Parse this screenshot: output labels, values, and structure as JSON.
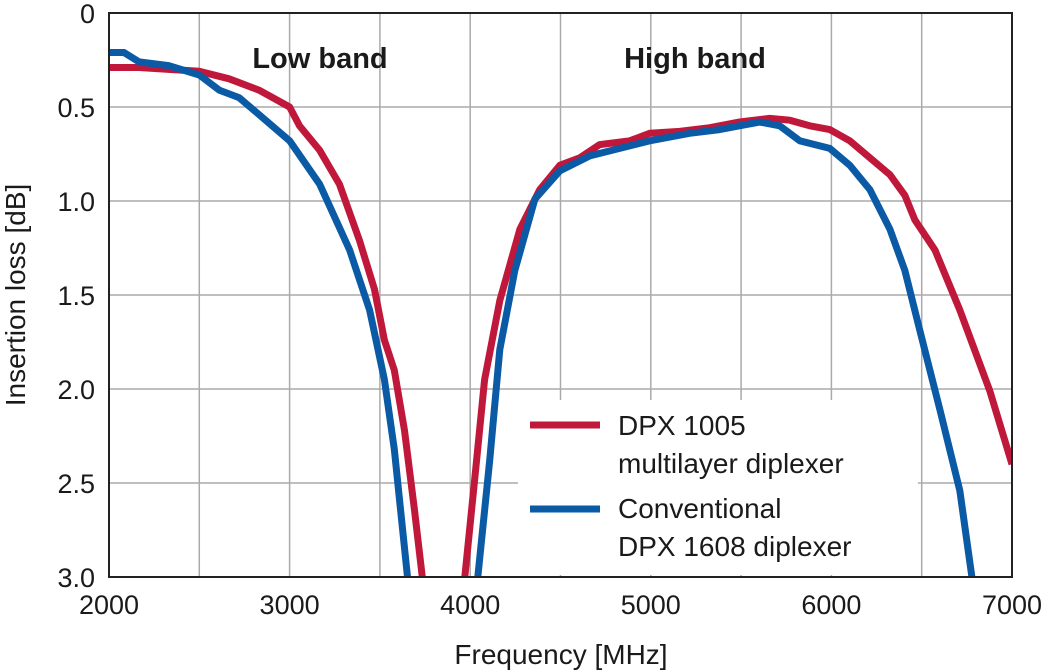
{
  "chart_data": {
    "type": "line",
    "title": "",
    "xlabel": "Frequency [MHz]",
    "ylabel": "Insertion loss [dB]",
    "xlim": [
      2000,
      7000
    ],
    "ylim": [
      0,
      3.0
    ],
    "y_inverted": true,
    "grid": true,
    "x_ticks": [
      2000,
      3000,
      4000,
      5000,
      6000,
      7000
    ],
    "x_tick_labels": [
      "2000",
      "3000",
      "4000",
      "5000",
      "6000",
      "7000"
    ],
    "y_ticks": [
      0,
      0.5,
      1.0,
      1.5,
      2.0,
      2.5,
      3.0
    ],
    "y_tick_labels": [
      "0",
      "0.5",
      "1.0",
      "1.5",
      "2.0",
      "2.5",
      "3.0"
    ],
    "annotations": [
      "Low band",
      "High band"
    ],
    "legend_placement": "bottom-right",
    "series": [
      {
        "name": "DPX 1005 multilayer diplexer",
        "legend_lines": [
          "DPX 1005",
          "multilayer diplexer"
        ],
        "color": "#c0183a",
        "segments": [
          [
            [
              2000,
              0.29
            ],
            [
              2166,
              0.29
            ],
            [
              2330,
              0.3
            ],
            [
              2500,
              0.31
            ],
            [
              2665,
              0.35
            ],
            [
              2830,
              0.41
            ],
            [
              3000,
              0.5
            ],
            [
              3055,
              0.6
            ],
            [
              3166,
              0.73
            ],
            [
              3276,
              0.91
            ],
            [
              3387,
              1.21
            ],
            [
              3470,
              1.47
            ],
            [
              3525,
              1.74
            ],
            [
              3580,
              1.9
            ],
            [
              3636,
              2.22
            ],
            [
              3691,
              2.64
            ],
            [
              3735,
              3.0
            ]
          ],
          [
            [
              3970,
              3.0
            ],
            [
              4025,
              2.48
            ],
            [
              4080,
              1.95
            ],
            [
              4164,
              1.53
            ],
            [
              4275,
              1.15
            ],
            [
              4385,
              0.94
            ],
            [
              4496,
              0.81
            ],
            [
              4607,
              0.77
            ],
            [
              4717,
              0.7
            ],
            [
              4883,
              0.68
            ],
            [
              4994,
              0.64
            ],
            [
              5160,
              0.63
            ],
            [
              5326,
              0.61
            ],
            [
              5492,
              0.58
            ],
            [
              5659,
              0.56
            ],
            [
              5770,
              0.57
            ],
            [
              5880,
              0.6
            ],
            [
              5991,
              0.62
            ],
            [
              6102,
              0.68
            ],
            [
              6213,
              0.77
            ],
            [
              6324,
              0.86
            ],
            [
              6407,
              0.97
            ],
            [
              6462,
              1.1
            ],
            [
              6573,
              1.26
            ],
            [
              6711,
              1.58
            ],
            [
              6877,
              2.01
            ],
            [
              7000,
              2.4
            ]
          ]
        ]
      },
      {
        "name": "Conventional DPX 1608 diplexer",
        "legend_lines": [
          "Conventional",
          "DPX 1608 diplexer"
        ],
        "color": "#0a5aa6",
        "segments": [
          [
            [
              2000,
              0.21
            ],
            [
              2083,
              0.21
            ],
            [
              2166,
              0.26
            ],
            [
              2330,
              0.28
            ],
            [
              2500,
              0.33
            ],
            [
              2610,
              0.41
            ],
            [
              2720,
              0.45
            ],
            [
              2830,
              0.54
            ],
            [
              3000,
              0.68
            ],
            [
              3166,
              0.91
            ],
            [
              3332,
              1.26
            ],
            [
              3443,
              1.58
            ],
            [
              3525,
              1.95
            ],
            [
              3580,
              2.32
            ],
            [
              3653,
              3.0
            ]
          ],
          [
            [
              4042,
              3.0
            ],
            [
              4108,
              2.38
            ],
            [
              4164,
              1.79
            ],
            [
              4247,
              1.37
            ],
            [
              4358,
              0.99
            ],
            [
              4496,
              0.84
            ],
            [
              4662,
              0.76
            ],
            [
              4828,
              0.72
            ],
            [
              4994,
              0.68
            ],
            [
              5215,
              0.64
            ],
            [
              5381,
              0.62
            ],
            [
              5603,
              0.58
            ],
            [
              5714,
              0.6
            ],
            [
              5825,
              0.68
            ],
            [
              5991,
              0.72
            ],
            [
              6102,
              0.81
            ],
            [
              6213,
              0.94
            ],
            [
              6324,
              1.15
            ],
            [
              6407,
              1.37
            ],
            [
              6490,
              1.69
            ],
            [
              6601,
              2.11
            ],
            [
              6711,
              2.54
            ],
            [
              6778,
              3.0
            ]
          ]
        ]
      }
    ]
  }
}
